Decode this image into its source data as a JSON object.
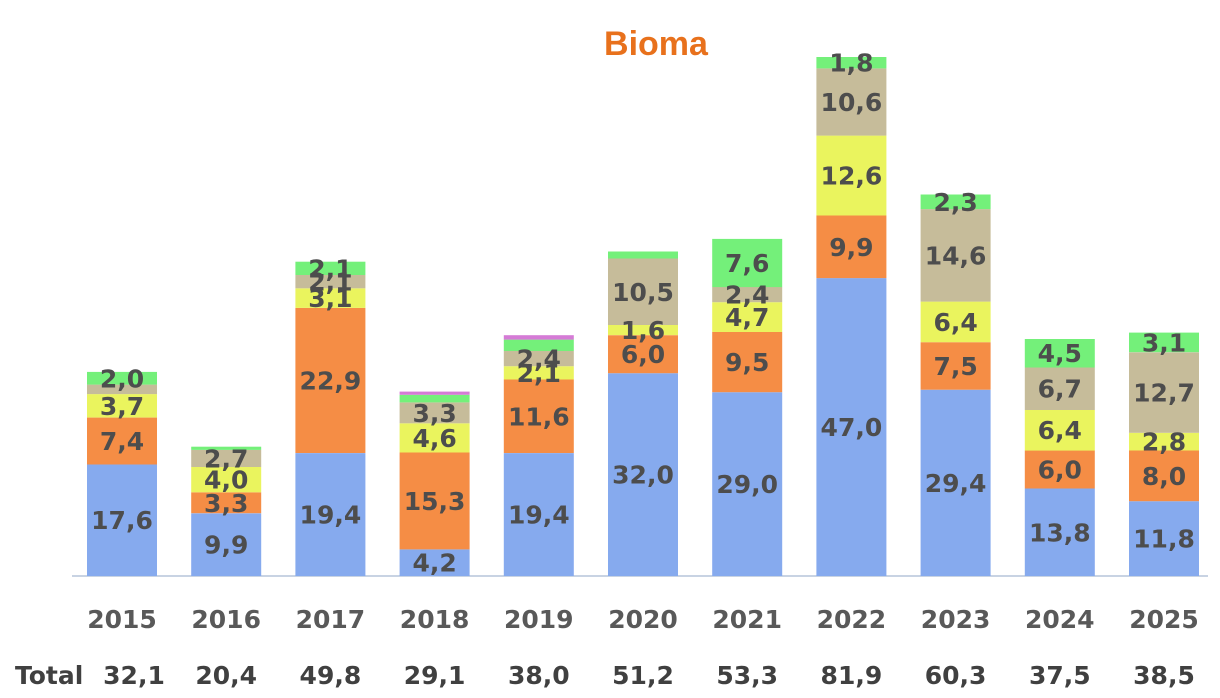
{
  "chart_data": {
    "type": "bar",
    "stacked": true,
    "title": "Bioma",
    "title_color": "#e8711c",
    "categories": [
      "2015",
      "2016",
      "2017",
      "2018",
      "2019",
      "2020",
      "2021",
      "2022",
      "2023",
      "2024",
      "2025"
    ],
    "series": [
      {
        "color": "#86aaee",
        "values": [
          17.6,
          9.9,
          19.4,
          4.2,
          19.4,
          32.0,
          29.0,
          47.0,
          29.4,
          13.8,
          11.8
        ],
        "labels": [
          "17,6",
          "9,9",
          "19,4",
          "4,2",
          "19,4",
          "32,0",
          "29,0",
          "47,0",
          "29,4",
          "13,8",
          "11,8"
        ]
      },
      {
        "color": "#f58d45",
        "values": [
          7.4,
          3.3,
          22.9,
          15.3,
          11.6,
          6.0,
          9.5,
          9.9,
          7.5,
          6.0,
          8.0
        ],
        "labels": [
          "7,4",
          "3,3",
          "22,9",
          "15,3",
          "11,6",
          "6,0",
          "9,5",
          "9,9",
          "7,5",
          "6,0",
          "8,0"
        ]
      },
      {
        "color": "#eaf45e",
        "values": [
          3.7,
          4.0,
          3.1,
          4.6,
          2.1,
          1.6,
          4.7,
          12.6,
          6.4,
          6.4,
          2.8
        ],
        "labels": [
          "3,7",
          "4,0",
          "3,1",
          "4,6",
          "2,1",
          "1,6",
          "4,7",
          "12,6",
          "6,4",
          "6,4",
          "2,8"
        ]
      },
      {
        "color": "#c6bc9a",
        "values": [
          1.5,
          2.7,
          2.1,
          3.3,
          2.4,
          10.5,
          2.4,
          10.6,
          14.6,
          6.7,
          12.7
        ],
        "labels": [
          "",
          "2,7",
          "2,1",
          "3,3",
          "2,4",
          "10,5",
          "2,4",
          "10,6",
          "14,6",
          "6,7",
          "12,7"
        ]
      },
      {
        "color": "#74f07a",
        "values": [
          2.0,
          0.5,
          2.1,
          1.2,
          1.8,
          1.1,
          7.6,
          1.8,
          2.3,
          4.5,
          3.1
        ],
        "labels": [
          "2,0",
          "",
          "2,1",
          "",
          "",
          "",
          "7,6",
          "1,8",
          "2,3",
          "4,5",
          "3,1"
        ]
      },
      {
        "color": "#d57bd6",
        "values": [
          0,
          0,
          0,
          0.5,
          0.7,
          0,
          0,
          0,
          0,
          0,
          0
        ],
        "labels": [
          "",
          "",
          "",
          "",
          "",
          "",
          "",
          "",
          "",
          "",
          ""
        ]
      }
    ],
    "totals_label": "Total",
    "totals": [
      "32,1",
      "20,4",
      "49,8",
      "29,1",
      "38,0",
      "51,2",
      "53,3",
      "81,9",
      "60,3",
      "37,5",
      "38,5"
    ],
    "ylim": [
      0,
      83
    ],
    "grid": false,
    "legend": "none"
  }
}
